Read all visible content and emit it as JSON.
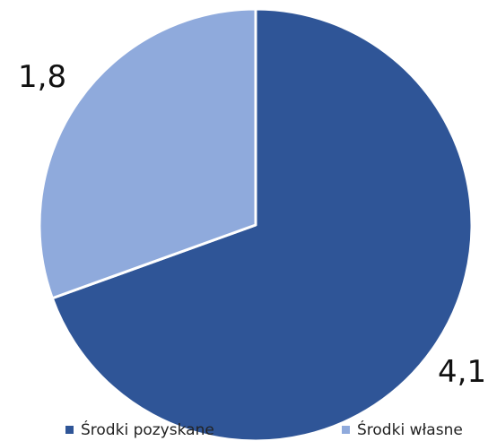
{
  "chart_data": {
    "type": "pie",
    "categories": [
      "Środki pozyskane",
      "Środki własne"
    ],
    "values": [
      4.1,
      1.8
    ],
    "value_labels": [
      "4,1",
      "1,8"
    ],
    "colors": [
      "#2f5597",
      "#8faadc"
    ],
    "legend_position": "bottom",
    "legend": [
      {
        "label": "Środki pozyskane",
        "color": "#2f5597"
      },
      {
        "label": "Środki własne",
        "color": "#8faadc"
      }
    ]
  }
}
